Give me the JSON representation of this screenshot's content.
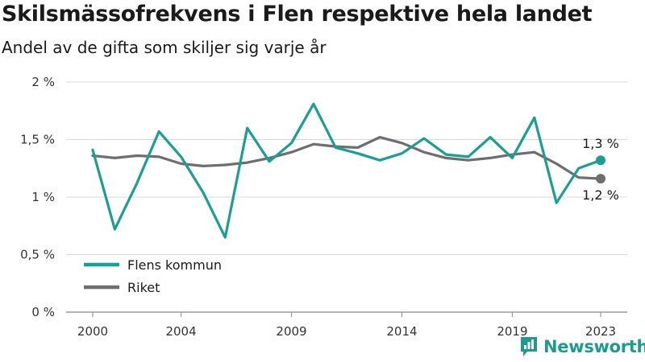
{
  "title": "Skilsmässofrekvens i Flen respektive hela landet",
  "subtitle": "Andel av de gifta som skiljer sig varje år",
  "brand": "Newsworthy",
  "chart_data": {
    "type": "line",
    "x": [
      2000,
      2001,
      2002,
      2003,
      2004,
      2005,
      2006,
      2007,
      2008,
      2009,
      2010,
      2011,
      2012,
      2013,
      2014,
      2015,
      2016,
      2017,
      2018,
      2019,
      2020,
      2021,
      2022,
      2023
    ],
    "series": [
      {
        "name": "Flens kommun",
        "color": "#1a9e95",
        "values": [
          1.41,
          0.72,
          1.12,
          1.57,
          1.35,
          1.04,
          0.65,
          1.6,
          1.31,
          1.47,
          1.81,
          1.43,
          1.38,
          1.32,
          1.38,
          1.51,
          1.37,
          1.35,
          1.52,
          1.34,
          1.69,
          0.95,
          1.25,
          1.32
        ],
        "end_label": "1,3 %"
      },
      {
        "name": "Riket",
        "color": "#6e6e72",
        "values": [
          1.36,
          1.34,
          1.36,
          1.35,
          1.29,
          1.27,
          1.28,
          1.3,
          1.34,
          1.39,
          1.46,
          1.44,
          1.43,
          1.52,
          1.47,
          1.39,
          1.34,
          1.32,
          1.34,
          1.37,
          1.39,
          1.29,
          1.17,
          1.16
        ],
        "end_label": "1,2 %"
      }
    ],
    "ylim": [
      0,
      2
    ],
    "y_ticks": [
      0,
      0.5,
      1,
      1.5,
      2
    ],
    "y_tick_labels": [
      "0 %",
      "0,5 %",
      "1 %",
      "1,5 %",
      "2 %"
    ],
    "x_ticks": [
      2000,
      2004,
      2009,
      2014,
      2019,
      2023
    ],
    "x_tick_labels": [
      "2000",
      "2004",
      "2009",
      "2014",
      "2019",
      "2023"
    ],
    "grid": true,
    "legend": "bottom-left",
    "xlabel": "",
    "ylabel": ""
  }
}
